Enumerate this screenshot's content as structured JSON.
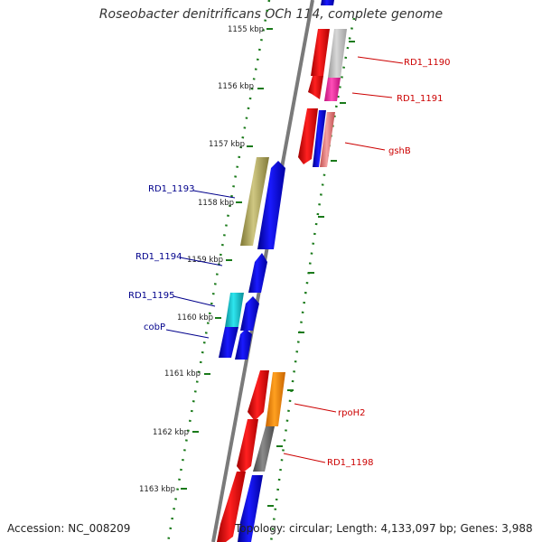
{
  "title": "Roseobacter denitrificans OCh 114, complete genome",
  "accession": "Accession: NC_008209",
  "summary": "Topology: circular; Length: 4,133,097 bp; Genes: 3,988",
  "kbp_labels": [
    "1155 kbp",
    "1156 kbp",
    "1157 kbp",
    "1158 kbp",
    "1159 kbp",
    "1160 kbp",
    "1161 kbp",
    "1162 kbp",
    "1163 kbp"
  ],
  "gene_labels": [
    {
      "text": "RD1_1190",
      "side": "right",
      "color": "#cc0000"
    },
    {
      "text": "RD1_1191",
      "side": "right",
      "color": "#cc0000"
    },
    {
      "text": "gshB",
      "side": "right",
      "color": "#cc0000"
    },
    {
      "text": "RD1_1193",
      "side": "left",
      "color": "#00008b"
    },
    {
      "text": "RD1_1194",
      "side": "left",
      "color": "#00008b"
    },
    {
      "text": "RD1_1195",
      "side": "left",
      "color": "#00008b"
    },
    {
      "text": "cobP",
      "side": "left",
      "color": "#00008b"
    },
    {
      "text": "rpoH2",
      "side": "right",
      "color": "#cc0000"
    },
    {
      "text": "RD1_1198",
      "side": "right",
      "color": "#cc0000"
    }
  ],
  "colors": {
    "forward": "#e8000b",
    "reverse": "#0a00e6",
    "gray_gene": "#c0c0c0",
    "magenta_gene": "#ff33aa",
    "pink_gene": "#ef8080",
    "olive_gene": "#b5ac5e",
    "cyan_gene": "#18c8d0",
    "orange_gene": "#ff8c00",
    "dark_gray_gene": "#6a6a6a",
    "backbone": "#888888",
    "ticks": "#1a7a1a"
  }
}
